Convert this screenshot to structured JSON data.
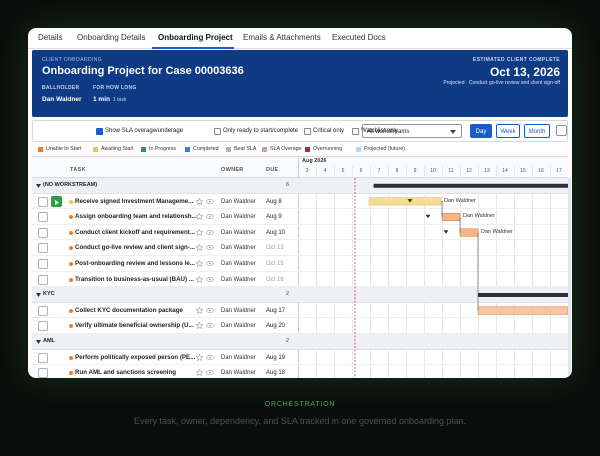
{
  "tabs": [
    "Details",
    "Onboarding Details",
    "Onboarding Project",
    "Emails & Attachments",
    "Executed Docs"
  ],
  "header": {
    "eyebrow": "CLIENT ONBOARDING",
    "title": "Onboarding Project for Case 00003636",
    "ballholder_label": "BALLHOLDER",
    "ballholder": "Dan Waldner",
    "duration_label": "FOR HOW LONG",
    "duration": "1 min",
    "duration_note": "1 task",
    "estimate_label": "ESTIMATED CLIENT COMPLETE",
    "estimate_date": "Oct 13, 2026",
    "estimate_note": "Projected · Conduct go-live review and client sign-off"
  },
  "toolbar": {
    "filters": [
      "Show SLA overage/underage",
      "Only ready to start/complete",
      "Critical only",
      "Watchlist only"
    ],
    "workstream": "All workstreams",
    "views": [
      "Day",
      "Week",
      "Month"
    ]
  },
  "legend": [
    {
      "label": "Unable to Start",
      "color": "#e8812f"
    },
    {
      "label": "Awaiting Start",
      "color": "#f2c14e"
    },
    {
      "label": "In Progress",
      "color": "#2e9e48"
    },
    {
      "label": "Completed",
      "color": "#3b7dd8"
    },
    {
      "label": "Beat SLA",
      "color": "#c9ccd1"
    },
    {
      "label": "SLA Overage",
      "color": "#e5b9b9"
    },
    {
      "label": "Overrunning",
      "color": "#c0392b"
    },
    {
      "label": "Projected (future)",
      "color": "#b7d3ef"
    }
  ],
  "grid": {
    "columns": [
      "TASK",
      "OWNER",
      "DUE"
    ],
    "month": "Aug 2026",
    "days": [
      3,
      4,
      5,
      6,
      7,
      8,
      9,
      10,
      11,
      12,
      13,
      14,
      15,
      16,
      17
    ]
  },
  "groups": [
    {
      "name": "(NO WORKSTREAM)",
      "count": 6,
      "tasks": [
        {
          "name": "Receive signed Investment Manageme...",
          "owner": "Dan Waldner",
          "due": "Aug 8"
        },
        {
          "name": "Assign onboarding team and relationsh...",
          "owner": "Dan Waldner",
          "due": "Aug 9"
        },
        {
          "name": "Conduct client kickoff and requirement...",
          "owner": "Dan Waldner",
          "due": "Aug 10"
        },
        {
          "name": "Conduct go-live review and client sign-...",
          "owner": "Dan Waldner",
          "due": "Oct 13",
          "projected": true
        },
        {
          "name": "Post-onboarding review and lessons le...",
          "owner": "Dan Waldner",
          "due": "Oct 15",
          "projected": true
        },
        {
          "name": "Transition to business-as-usual (BAU) ...",
          "owner": "Dan Waldner",
          "due": "Oct 16",
          "projected": true
        }
      ]
    },
    {
      "name": "KYC",
      "count": 2,
      "tasks": [
        {
          "name": "Collect KYC documentation package",
          "owner": "Dan Waldner",
          "due": "Aug 17"
        },
        {
          "name": "Verify ultimate beneficial ownership (U...",
          "owner": "Dan Waldner",
          "due": "Aug 20"
        }
      ]
    },
    {
      "name": "AML",
      "count": 2,
      "tasks": [
        {
          "name": "Perform politically exposed person (PE...",
          "owner": "Dan Waldner",
          "due": "Aug 19"
        },
        {
          "name": "Run AML and sanctions screening",
          "owner": "Dan Waldner",
          "due": "Aug 18"
        }
      ]
    }
  ],
  "caption": {
    "eyebrow": "ORCHESTRATION",
    "text": "Every task, owner, dependency, and SLA tracked in one governed onboarding plan."
  }
}
